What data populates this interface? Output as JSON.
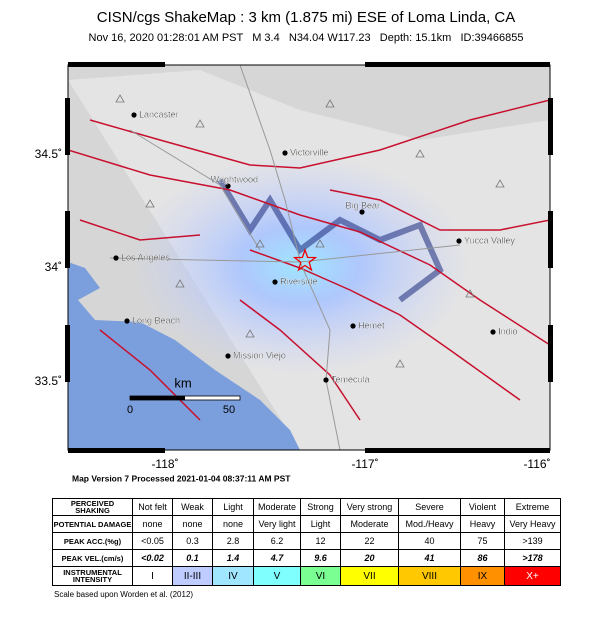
{
  "header": {
    "title": "CISN/cgs ShakeMap : 3 km (1.875 mi) ESE of Loma Linda, CA",
    "subtitle": "Nov 16, 2020 01:28:01 AM PST   M 3.4   N34.04 W117.23   Depth: 15.1km   ID:39466855"
  },
  "map": {
    "cities": [
      "Lancaster",
      "Victorville",
      "Wrightwood",
      "Big Bear",
      "Yucca Valley",
      "Los Angeles",
      "Riverside",
      "Long Beach",
      "Hemet",
      "Indio",
      "Mission Viejo",
      "Temecula"
    ],
    "lat_labels": [
      "34.5˚",
      "34˚",
      "33.5˚"
    ],
    "lon_labels": [
      "-118˚",
      "-117˚",
      "-116˚"
    ],
    "scale": {
      "unit": "km",
      "ticks": [
        "0",
        "50"
      ]
    }
  },
  "version": "Map Version 7 Processed 2021-01-04 08:37:11 AM PST",
  "legend": {
    "row_headers": [
      "PERCEIVED SHAKING",
      "POTENTIAL DAMAGE",
      "PEAK ACC.(%g)",
      "PEAK VEL.(cm/s)",
      "INSTRUMENTAL INTENSITY"
    ],
    "rows": [
      [
        "Not felt",
        "Weak",
        "Light",
        "Moderate",
        "Strong",
        "Very strong",
        "Severe",
        "Violent",
        "Extreme"
      ],
      [
        "none",
        "none",
        "none",
        "Very light",
        "Light",
        "Moderate",
        "Mod./Heavy",
        "Heavy",
        "Very Heavy"
      ],
      [
        "<0.05",
        "0.3",
        "2.8",
        "6.2",
        "12",
        "22",
        "40",
        "75",
        ">139"
      ],
      [
        "<0.02",
        "0.1",
        "1.4",
        "4.7",
        "9.6",
        "20",
        "41",
        "86",
        ">178"
      ],
      [
        "I",
        "II-III",
        "IV",
        "V",
        "VI",
        "VII",
        "VIII",
        "IX",
        "X+"
      ]
    ],
    "intensity_colors": [
      "#ffffff",
      "#bfccff",
      "#a0e6ff",
      "#80ffff",
      "#7aff93",
      "#ffff00",
      "#ffc800",
      "#ff9100",
      "#ff0000"
    ]
  },
  "footnote": "Scale based upon Worden et al. (2012)"
}
